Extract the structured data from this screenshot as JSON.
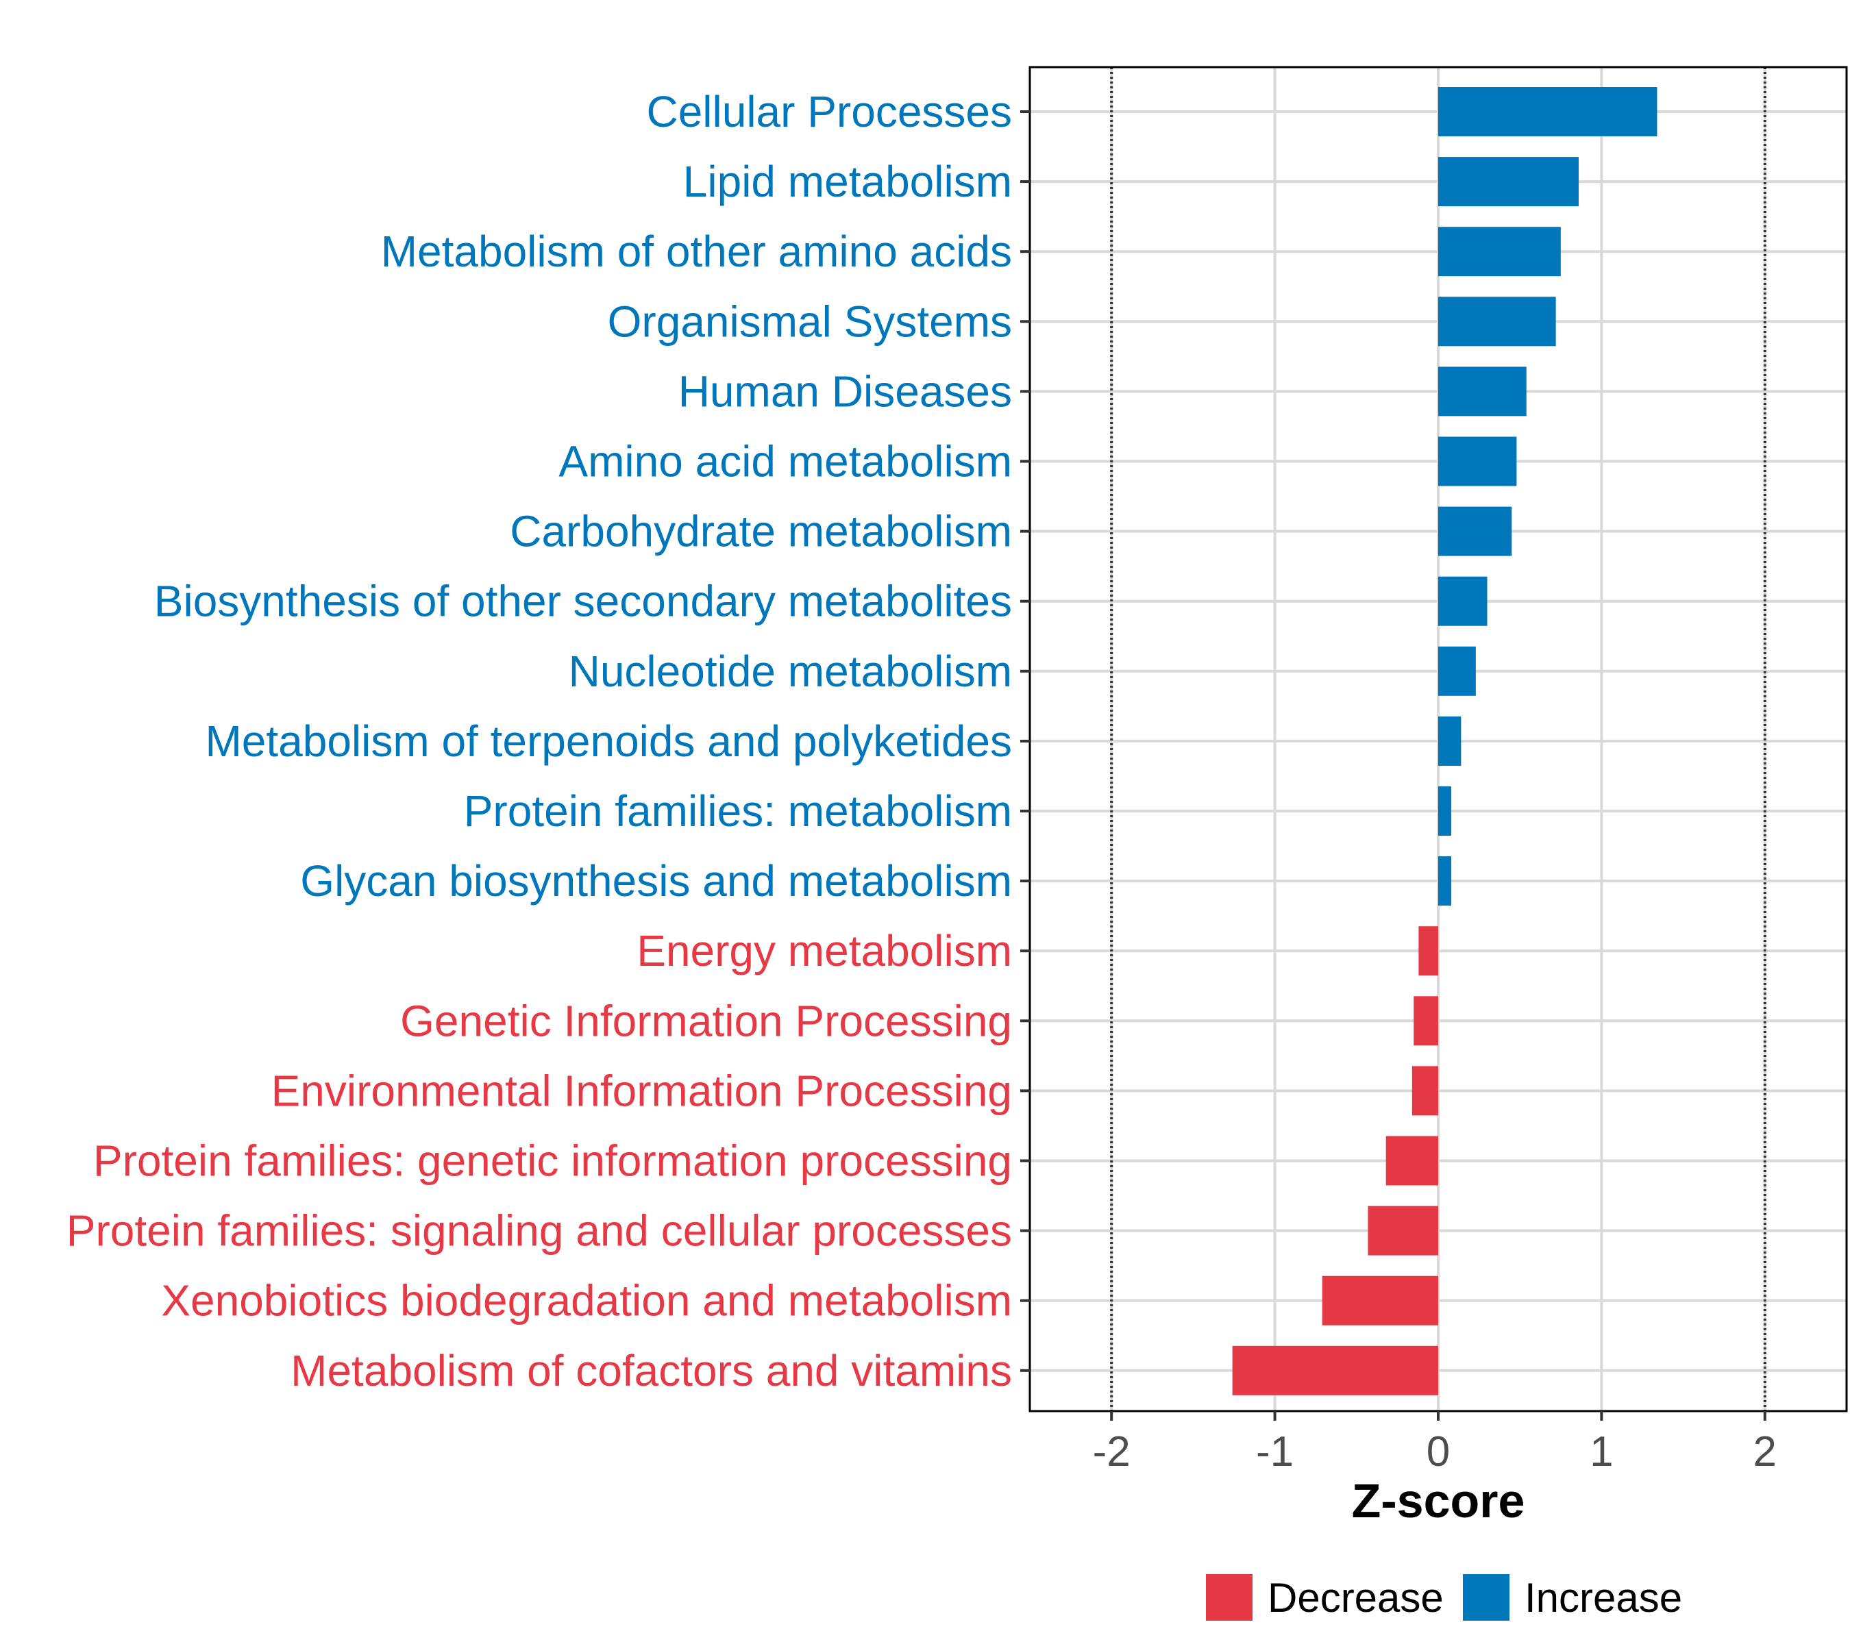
{
  "chart_data": {
    "type": "bar",
    "orientation": "horizontal",
    "title": "",
    "xlabel": "Z-score",
    "ylabel": "",
    "xlim": [
      -2.5,
      2.5
    ],
    "xticks": [
      -2,
      -1,
      0,
      1,
      2
    ],
    "xtick_labels": [
      "-2",
      "-1",
      "0",
      "1",
      "2"
    ],
    "reference_lines": [
      -2,
      2
    ],
    "grid": true,
    "categories": [
      "Cellular Processes",
      "Lipid metabolism",
      "Metabolism of other amino acids",
      "Organismal Systems",
      "Human Diseases",
      "Amino acid metabolism",
      "Carbohydrate metabolism",
      "Biosynthesis of other secondary metabolites",
      "Nucleotide metabolism",
      "Metabolism of terpenoids and polyketides",
      "Protein families: metabolism",
      "Glycan biosynthesis and metabolism",
      "Energy metabolism",
      "Genetic Information Processing",
      "Environmental Information Processing",
      "Protein families: genetic information processing",
      "Protein families: signaling and cellular processes",
      "Xenobiotics biodegradation and metabolism",
      "Metabolism of cofactors and vitamins"
    ],
    "values": [
      1.34,
      0.86,
      0.75,
      0.72,
      0.54,
      0.48,
      0.45,
      0.3,
      0.23,
      0.14,
      0.08,
      0.08,
      -0.12,
      -0.15,
      -0.16,
      -0.32,
      -0.43,
      -0.71,
      -1.26
    ],
    "legend": {
      "position": "bottom",
      "entries": [
        {
          "label": "Decrease",
          "color": "#E63946"
        },
        {
          "label": "Increase",
          "color": "#0077BB"
        }
      ]
    },
    "colors": {
      "increase": "#0077BB",
      "decrease": "#E63946",
      "grid": "#d9d9d9",
      "axis": "#000000",
      "reference": "#333333"
    }
  }
}
